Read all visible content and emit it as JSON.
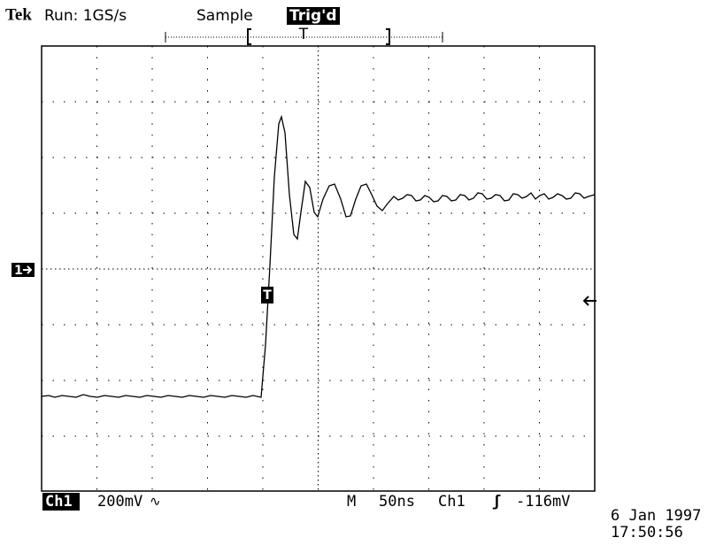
{
  "header": {
    "brand": "Tek",
    "run": "Run: 1GS/s",
    "mode": "Sample",
    "status": "Trig'd",
    "trigger_position": "T"
  },
  "markers": {
    "channel": "1",
    "trigger": "T"
  },
  "footer": {
    "channel": "Ch1",
    "volts_per_div": "200mV",
    "coupling": "∿",
    "timebase_label": "M",
    "time_per_div": "50ns",
    "trigger_source": "Ch1",
    "trigger_slope": "ʃ",
    "trigger_level": "-116mV",
    "date": "6 Jan 1997",
    "time": "17:50:56"
  }
}
